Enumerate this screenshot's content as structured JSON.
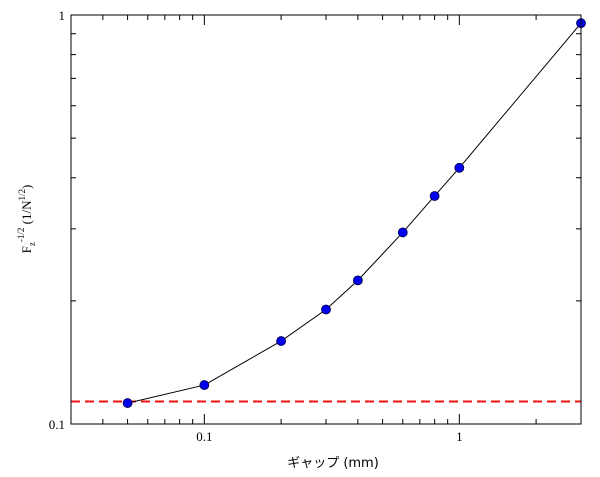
{
  "chart_data": {
    "type": "line",
    "xscale": "log",
    "yscale": "log",
    "xlim": [
      0.03,
      3.0
    ],
    "ylim": [
      0.1,
      1.0
    ],
    "xlabel": "ギャップ (mm)",
    "ylabel": {
      "base1": "F",
      "sub1": "z",
      "sup1": "-1/2",
      "mid": " (1/N",
      "sup2": "1/2",
      "end": ")"
    },
    "x_ticks": [
      {
        "value": 0.1,
        "label": "0.1"
      },
      {
        "value": 1,
        "label": "1"
      }
    ],
    "y_ticks": [
      {
        "value": 0.1,
        "label": "0.1"
      },
      {
        "value": 1,
        "label": "1"
      }
    ],
    "grid": false,
    "series": [
      {
        "x": [
          0.05,
          0.1,
          0.2,
          0.3,
          0.4,
          0.6,
          0.8,
          1.0,
          3.0
        ],
        "y": [
          0.1125,
          0.1245,
          0.1595,
          0.1905,
          0.2245,
          0.294,
          0.361,
          0.423,
          0.955
        ],
        "color": "#0000ee",
        "line_color": "#000000"
      }
    ],
    "reference_line": {
      "y": 0.1135,
      "color": "#ee1111",
      "style": "dashed"
    }
  }
}
